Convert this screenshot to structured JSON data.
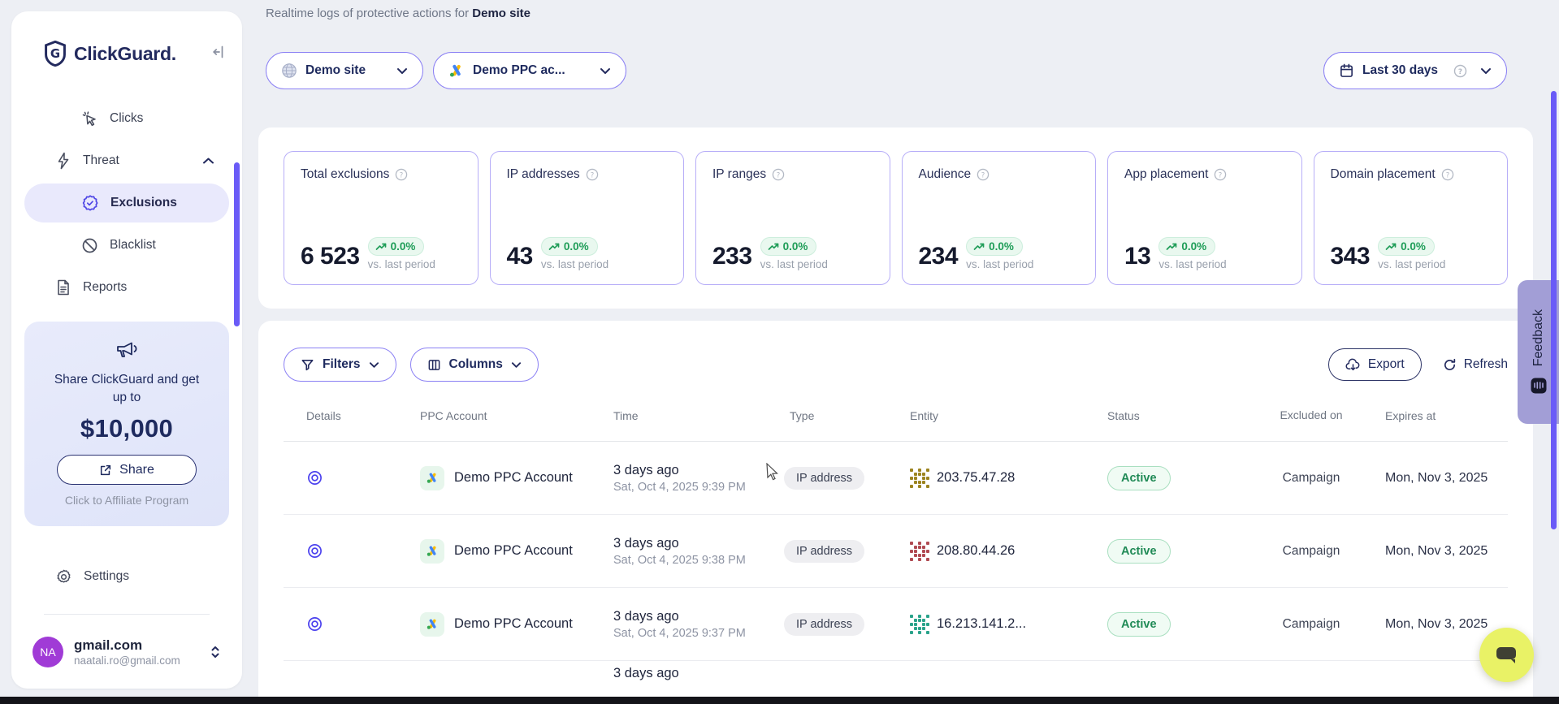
{
  "sidebar": {
    "logo_text": "ClickGuard.",
    "nav": {
      "clicks": "Clicks",
      "threat": "Threat",
      "exclusions": "Exclusions",
      "blacklist": "Blacklist",
      "reports": "Reports"
    },
    "promo": {
      "line1": "Share ClickGuard and get up to",
      "amount": "$10,000",
      "share_label": "Share",
      "footer": "Click to Affiliate Program"
    },
    "settings_label": "Settings",
    "user": {
      "initials": "NA",
      "name": "gmail.com",
      "email": "naatali.ro@gmail.com"
    }
  },
  "header": {
    "subtitle_prefix": "Realtime logs of protective actions for ",
    "subtitle_site": "Demo site",
    "site_selector": "Demo site",
    "account_selector": "Demo PPC ac...",
    "date_range": "Last 30 days"
  },
  "stats": {
    "cards": [
      {
        "label": "Total exclusions",
        "value": "6 523",
        "delta": "0.0%",
        "caption": "vs. last period"
      },
      {
        "label": "IP addresses",
        "value": "43",
        "delta": "0.0%",
        "caption": "vs. last period"
      },
      {
        "label": "IP ranges",
        "value": "233",
        "delta": "0.0%",
        "caption": "vs. last period"
      },
      {
        "label": "Audience",
        "value": "234",
        "delta": "0.0%",
        "caption": "vs. last period"
      },
      {
        "label": "App placement",
        "value": "13",
        "delta": "0.0%",
        "caption": "vs. last period"
      },
      {
        "label": "Domain placement",
        "value": "343",
        "delta": "0.0%",
        "caption": "vs. last period"
      }
    ]
  },
  "toolbar": {
    "filters_label": "Filters",
    "columns_label": "Columns",
    "export_label": "Export",
    "refresh_label": "Refresh"
  },
  "table": {
    "headers": {
      "details": "Details",
      "ppc_account": "PPC Account",
      "time": "Time",
      "type": "Type",
      "entity": "Entity",
      "status": "Status",
      "excluded_on": "Excluded on",
      "expires_at": "Expires at"
    },
    "rows": [
      {
        "ppc_account": "Demo PPC Account",
        "time_relative": "3 days ago",
        "time_full": "Sat, Oct 4, 2025 9:39 PM",
        "type": "IP address",
        "entity": "203.75.47.28",
        "entity_icon_color": "#9c8420",
        "status": "Active",
        "excluded_on": "Campaign",
        "expires_at": "Mon, Nov 3, 2025"
      },
      {
        "ppc_account": "Demo PPC Account",
        "time_relative": "3 days ago",
        "time_full": "Sat, Oct 4, 2025 9:38 PM",
        "type": "IP address",
        "entity": "208.80.44.26",
        "entity_icon_color": "#b04a52",
        "status": "Active",
        "excluded_on": "Campaign",
        "expires_at": "Mon, Nov 3, 2025"
      },
      {
        "ppc_account": "Demo PPC Account",
        "time_relative": "3 days ago",
        "time_full": "Sat, Oct 4, 2025 9:37 PM",
        "type": "IP address",
        "entity": "16.213.141.2...",
        "entity_icon_color": "#2aa38b",
        "status": "Active",
        "excluded_on": "Campaign",
        "expires_at": "Mon, Nov 3, 2025"
      },
      {
        "ppc_account": "",
        "time_relative": "3 days ago",
        "time_full": "",
        "type": "",
        "entity": "",
        "entity_icon_color": "",
        "status": "",
        "excluded_on": "",
        "expires_at": ""
      }
    ]
  },
  "feedback_label": "Feedback",
  "colors": {
    "accent_purple": "#6a5bf7",
    "border_purple": "#8b80f4",
    "positive_green": "#1f9d58",
    "navy": "#1e2a5e",
    "chat_bubble": "#e9f266"
  }
}
